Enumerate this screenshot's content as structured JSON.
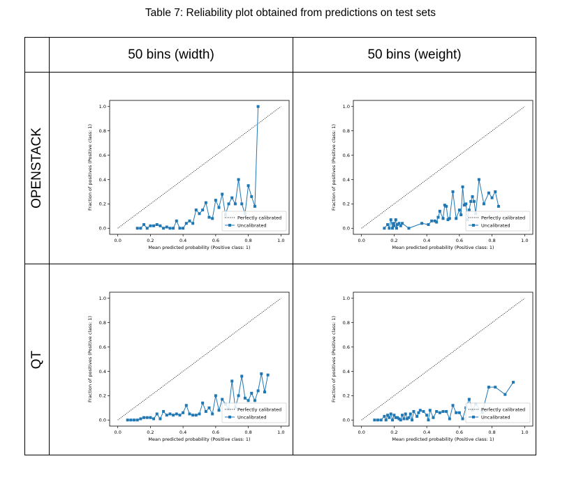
{
  "caption": "Table 7: Reliability plot obtained from predictions on test sets",
  "table": {
    "col_headers": [
      "50 bins (width)",
      "50 bins (weight)"
    ],
    "row_headers": [
      "OPENSTACK",
      "QT"
    ]
  },
  "chart_data": [
    {
      "type": "line",
      "title": "",
      "xlabel": "Mean predicted probability (Positive class: 1)",
      "ylabel": "Fraction of positives (Positive class: 1)",
      "xlim": [
        -0.05,
        1.05
      ],
      "ylim": [
        -0.05,
        1.05
      ],
      "xticks": [
        "0.0",
        "0.2",
        "0.4",
        "0.6",
        "0.8",
        "1.0"
      ],
      "yticks": [
        "0.0",
        "0.2",
        "0.4",
        "0.6",
        "0.8",
        "1.0"
      ],
      "legend": {
        "position": "lower-right",
        "entries": [
          "Perfectly calibrated",
          "Uncalibrated"
        ]
      },
      "series": [
        {
          "name": "Perfectly calibrated",
          "style": "dotted",
          "color": "#000000",
          "x": [
            0,
            1
          ],
          "y": [
            0,
            1
          ]
        },
        {
          "name": "Uncalibrated",
          "style": "line-square",
          "color": "#1f77b4",
          "x": [
            0.12,
            0.14,
            0.16,
            0.18,
            0.2,
            0.22,
            0.24,
            0.26,
            0.28,
            0.3,
            0.32,
            0.34,
            0.36,
            0.38,
            0.4,
            0.42,
            0.44,
            0.46,
            0.48,
            0.5,
            0.52,
            0.54,
            0.56,
            0.58,
            0.6,
            0.62,
            0.64,
            0.66,
            0.68,
            0.7,
            0.72,
            0.74,
            0.76,
            0.78,
            0.8,
            0.82,
            0.84,
            0.86
          ],
          "y": [
            0.0,
            0.0,
            0.03,
            0.0,
            0.02,
            0.02,
            0.03,
            0.02,
            0.0,
            0.01,
            0.0,
            0.0,
            0.06,
            0.0,
            0.0,
            0.04,
            0.06,
            0.04,
            0.15,
            0.12,
            0.15,
            0.21,
            0.09,
            0.08,
            0.23,
            0.17,
            0.28,
            0.11,
            0.2,
            0.25,
            0.2,
            0.4,
            0.2,
            0.12,
            0.35,
            0.26,
            0.18,
            1.0
          ]
        }
      ]
    },
    {
      "type": "line",
      "title": "",
      "xlabel": "Mean predicted probability (Positive class: 1)",
      "ylabel": "Fraction of positives (Positive class: 1)",
      "xlim": [
        -0.05,
        1.05
      ],
      "ylim": [
        -0.05,
        1.05
      ],
      "xticks": [
        "0.0",
        "0.2",
        "0.4",
        "0.6",
        "0.8",
        "1.0"
      ],
      "yticks": [
        "0.0",
        "0.2",
        "0.4",
        "0.6",
        "0.8",
        "1.0"
      ],
      "legend": {
        "position": "lower-right",
        "entries": [
          "Perfectly calibrated",
          "Uncalibrated"
        ]
      },
      "series": [
        {
          "name": "Perfectly calibrated",
          "style": "dotted",
          "color": "#000000",
          "x": [
            0,
            1
          ],
          "y": [
            0,
            1
          ]
        },
        {
          "name": "Uncalibrated",
          "style": "line-square",
          "color": "#1f77b4",
          "x": [
            0.14,
            0.16,
            0.17,
            0.18,
            0.19,
            0.195,
            0.2,
            0.21,
            0.215,
            0.22,
            0.23,
            0.24,
            0.25,
            0.29,
            0.37,
            0.41,
            0.43,
            0.45,
            0.46,
            0.47,
            0.48,
            0.5,
            0.51,
            0.52,
            0.53,
            0.54,
            0.56,
            0.58,
            0.6,
            0.61,
            0.62,
            0.63,
            0.64,
            0.65,
            0.66,
            0.67,
            0.68,
            0.69,
            0.7,
            0.72,
            0.75,
            0.78,
            0.8,
            0.82,
            0.84
          ],
          "y": [
            0.0,
            0.03,
            0.0,
            0.07,
            0.0,
            0.04,
            0.02,
            0.07,
            0.0,
            0.03,
            0.04,
            0.02,
            0.04,
            0.0,
            0.04,
            0.03,
            0.06,
            0.06,
            0.05,
            0.09,
            0.14,
            0.08,
            0.19,
            0.18,
            0.07,
            0.08,
            0.3,
            0.08,
            0.15,
            0.11,
            0.34,
            0.19,
            0.2,
            0.07,
            0.15,
            0.22,
            0.26,
            0.22,
            0.12,
            0.4,
            0.2,
            0.29,
            0.25,
            0.3,
            0.18
          ]
        }
      ]
    },
    {
      "type": "line",
      "title": "",
      "xlabel": "Mean predicted probability (Positive class: 1)",
      "ylabel": "Fraction of positives (Positive class: 1)",
      "xlim": [
        -0.05,
        1.05
      ],
      "ylim": [
        -0.05,
        1.05
      ],
      "xticks": [
        "0.0",
        "0.2",
        "0.4",
        "0.6",
        "0.8",
        "1.0"
      ],
      "yticks": [
        "0.0",
        "0.2",
        "0.4",
        "0.6",
        "0.8",
        "1.0"
      ],
      "legend": {
        "position": "lower-right",
        "entries": [
          "Perfectly calibrated",
          "Uncalibrated"
        ]
      },
      "series": [
        {
          "name": "Perfectly calibrated",
          "style": "dotted",
          "color": "#000000",
          "x": [
            0,
            1
          ],
          "y": [
            0,
            1
          ]
        },
        {
          "name": "Uncalibrated",
          "style": "line-square",
          "color": "#1f77b4",
          "x": [
            0.06,
            0.08,
            0.1,
            0.12,
            0.14,
            0.16,
            0.18,
            0.2,
            0.22,
            0.24,
            0.26,
            0.28,
            0.3,
            0.32,
            0.34,
            0.36,
            0.38,
            0.4,
            0.42,
            0.44,
            0.46,
            0.48,
            0.5,
            0.52,
            0.54,
            0.56,
            0.58,
            0.6,
            0.62,
            0.64,
            0.66,
            0.68,
            0.7,
            0.72,
            0.74,
            0.76,
            0.78,
            0.8,
            0.82,
            0.84,
            0.86,
            0.88,
            0.9,
            0.92
          ],
          "y": [
            0.0,
            0.0,
            0.0,
            0.0,
            0.01,
            0.02,
            0.02,
            0.02,
            0.01,
            0.05,
            0.01,
            0.07,
            0.04,
            0.05,
            0.04,
            0.05,
            0.04,
            0.06,
            0.12,
            0.05,
            0.04,
            0.04,
            0.05,
            0.14,
            0.07,
            0.1,
            0.05,
            0.2,
            0.08,
            0.17,
            0.13,
            0.09,
            0.32,
            0.1,
            0.2,
            0.36,
            0.18,
            0.16,
            0.22,
            0.16,
            0.24,
            0.38,
            0.23,
            0.37
          ]
        }
      ]
    },
    {
      "type": "line",
      "title": "",
      "xlabel": "Mean predicted probability (Positive class: 1)",
      "ylabel": "Fraction of positives (Positive class: 1)",
      "xlim": [
        -0.05,
        1.05
      ],
      "ylim": [
        -0.05,
        1.05
      ],
      "xticks": [
        "0.0",
        "0.2",
        "0.4",
        "0.6",
        "0.8",
        "1.0"
      ],
      "yticks": [
        "0.0",
        "0.2",
        "0.4",
        "0.6",
        "0.8",
        "1.0"
      ],
      "legend": {
        "position": "lower-right",
        "entries": [
          "Perfectly calibrated",
          "Uncalibrated"
        ]
      },
      "series": [
        {
          "name": "Perfectly calibrated",
          "style": "dotted",
          "color": "#000000",
          "x": [
            0,
            1
          ],
          "y": [
            0,
            1
          ]
        },
        {
          "name": "Uncalibrated",
          "style": "line-square",
          "color": "#1f77b4",
          "x": [
            0.08,
            0.1,
            0.12,
            0.14,
            0.15,
            0.16,
            0.17,
            0.18,
            0.19,
            0.2,
            0.21,
            0.22,
            0.23,
            0.24,
            0.25,
            0.26,
            0.27,
            0.28,
            0.29,
            0.3,
            0.31,
            0.32,
            0.34,
            0.35,
            0.36,
            0.38,
            0.4,
            0.41,
            0.42,
            0.44,
            0.46,
            0.48,
            0.5,
            0.52,
            0.54,
            0.56,
            0.58,
            0.6,
            0.62,
            0.64,
            0.66,
            0.68,
            0.7,
            0.74,
            0.78,
            0.82,
            0.88,
            0.93
          ],
          "y": [
            0.0,
            0.0,
            0.0,
            0.03,
            0.0,
            0.04,
            0.02,
            0.05,
            0.0,
            0.04,
            0.02,
            0.02,
            0.01,
            0.0,
            0.04,
            0.01,
            0.05,
            0.01,
            0.02,
            0.05,
            0.0,
            0.07,
            0.03,
            0.06,
            0.08,
            0.07,
            0.04,
            0.0,
            0.08,
            0.02,
            0.07,
            0.06,
            0.07,
            0.07,
            0.01,
            0.12,
            0.06,
            0.06,
            0.01,
            0.1,
            0.17,
            0.08,
            0.13,
            0.06,
            0.27,
            0.27,
            0.21,
            0.31
          ]
        }
      ]
    }
  ]
}
